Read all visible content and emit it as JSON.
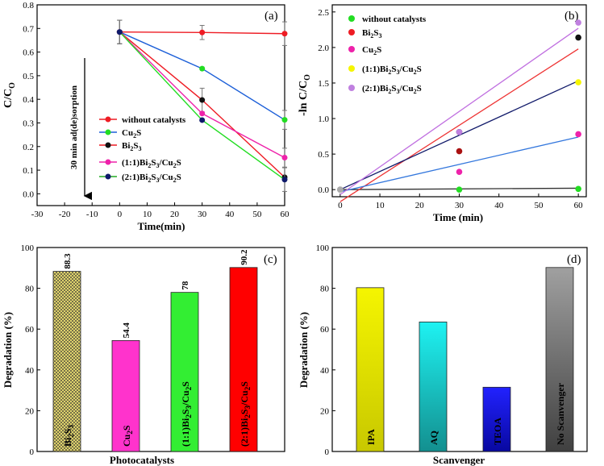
{
  "colors": {
    "red": "#ee1c24",
    "green": "#22dd22",
    "blue": "#1c5fd8",
    "navy": "#0f1a6b",
    "magenta": "#ee22aa",
    "yellow": "#f5f500",
    "purple": "#c080e0",
    "bi2s3_face": "#eee070",
    "cu2s_face": "#ff33cc",
    "c11_face": "#33ee33",
    "c21_face": "#ff0000",
    "ipa": "#f5f500",
    "aq": "#1ef2f2",
    "teoa": "#1010ee",
    "nosc": "#9a9a9a"
  },
  "chart_data": [
    {
      "panel": "(a)",
      "type": "line",
      "xlabel": "Time(min)",
      "ylabel": "C/C",
      "ylabel_sub": "O",
      "xlim": [
        -30,
        60
      ],
      "ylim": [
        -0.05,
        0.8
      ],
      "xticks": [
        -30,
        -20,
        -10,
        0,
        10,
        20,
        30,
        40,
        50,
        60
      ],
      "yticks": [
        0.0,
        0.1,
        0.2,
        0.3,
        0.4,
        0.5,
        0.6,
        0.7,
        0.8
      ],
      "annotation": "30 min ad(de)sorption",
      "series": [
        {
          "name": "without catalysts",
          "legend_main": "without catalysts",
          "legend_sub": "",
          "legend_tail": "",
          "color": "red",
          "x": [
            0,
            30,
            60
          ],
          "y": [
            0.685,
            0.683,
            0.678
          ],
          "err": [
            0.05,
            0.03,
            0.05
          ]
        },
        {
          "name": "Cu2S",
          "legend_main": "Cu",
          "legend_sub": "2",
          "legend_tail": "S",
          "color": "green",
          "x": [
            0,
            30,
            60
          ],
          "y": [
            0.685,
            0.53,
            0.313
          ],
          "err": [
            0.05,
            0.0,
            0.04
          ]
        },
        {
          "name": "Bi2S3",
          "legend_main": "Bi",
          "legend_sub": "2",
          "legend_tail": "S",
          "legend_sub2": "3",
          "color": "navy",
          "x": [
            0,
            30,
            60
          ],
          "y": [
            0.685,
            0.397,
            0.07
          ],
          "err": [
            0.05,
            0.05,
            0.0
          ]
        },
        {
          "name": "(1:1)Bi2S3/Cu2S",
          "legend_main": "(1:1)Bi",
          "color": "magenta",
          "x": [
            0,
            30,
            60
          ],
          "y": [
            0.685,
            0.34,
            0.153
          ],
          "err": [
            0.05,
            0.0,
            0.04
          ]
        },
        {
          "name": "(2:1)Bi2S3/Cu2S",
          "legend_main": "(2:1)Bi",
          "color": "navy",
          "marker_color": "blue",
          "line_color": "green",
          "x": [
            0,
            30,
            60
          ],
          "y": [
            0.685,
            0.312,
            0.06
          ],
          "err": [
            0.05,
            0.0,
            0.05
          ]
        }
      ]
    },
    {
      "panel": "(b)",
      "type": "scatter",
      "xlabel": "Time (min)",
      "ylabel": "-ln C/C",
      "ylabel_sub": "O",
      "xlim": [
        -2,
        62
      ],
      "ylim": [
        -0.1,
        2.6
      ],
      "xticks": [
        0,
        10,
        20,
        30,
        40,
        50,
        60
      ],
      "yticks": [
        0.0,
        0.5,
        1.0,
        1.5,
        2.0,
        2.5
      ],
      "series": [
        {
          "name": "without catalysts",
          "color": "green",
          "x": [
            0,
            30,
            60
          ],
          "y": [
            0.0,
            0.0,
            0.01
          ],
          "fit": [
            [
              0,
              0.0
            ],
            [
              60,
              0.02
            ]
          ]
        },
        {
          "name": "Bi2S3",
          "color": "red",
          "x": [
            0,
            30,
            60
          ],
          "y": [
            0.0,
            0.54,
            2.14
          ],
          "fit": [
            [
              0,
              -0.17
            ],
            [
              60,
              1.98
            ]
          ]
        },
        {
          "name": "Cu2S",
          "color": "magenta",
          "x": [
            0,
            30,
            60
          ],
          "y": [
            0.0,
            0.25,
            0.78
          ],
          "fit": [
            [
              0,
              -0.03
            ],
            [
              60,
              0.74
            ]
          ]
        },
        {
          "name": "(1:1)Bi2S3/Cu2S",
          "color": "yellow",
          "x": [
            0,
            30,
            60
          ],
          "y": [
            0.0,
            0.81,
            1.51
          ],
          "fit": [
            [
              0,
              0.0
            ],
            [
              60,
              1.53
            ]
          ]
        },
        {
          "name": "(2:1)Bi2S3/Cu2S",
          "color": "purple",
          "x": [
            0,
            30,
            60
          ],
          "y": [
            0.0,
            0.81,
            2.35
          ],
          "fit": [
            [
              0,
              -0.07
            ],
            [
              60,
              2.27
            ]
          ]
        }
      ]
    },
    {
      "panel": "(c)",
      "type": "bar",
      "xlabel": "Photocatalysts",
      "ylabel": "Degradation (%)",
      "ylim": [
        0,
        100
      ],
      "yticks": [
        0,
        20,
        40,
        60,
        80,
        100
      ],
      "categories": [
        "Bi2S3",
        "Cu2S",
        "(1:1)Bi2S3/Cu2S",
        "(2:1)Bi2S3/Cu2S"
      ],
      "values": [
        88.3,
        54.4,
        78,
        90.2
      ],
      "value_labels": [
        "88.3",
        "54.4",
        "78",
        "90.2"
      ]
    },
    {
      "panel": "(d)",
      "type": "bar",
      "xlabel": "Scanvenger",
      "ylabel": "Degradation (%)",
      "ylim": [
        0,
        100
      ],
      "yticks": [
        0,
        20,
        40,
        60,
        80,
        100
      ],
      "categories": [
        "IPA",
        "AQ",
        "TEOA",
        "No Scanvenger"
      ],
      "values": [
        80.3,
        63.5,
        31.5,
        90.2
      ]
    }
  ],
  "labels": {
    "a": {
      "panel": "(a)",
      "xlabel": "Time(min)",
      "yl_main": "C/C",
      "yl_sub": "O",
      "annotation": "30 min ad(de)sorption",
      "ticks_x": [
        "-30",
        "-20",
        "-10",
        "0",
        "10",
        "20",
        "30",
        "40",
        "50",
        "60"
      ],
      "ticks_y": [
        "0.0",
        "0.1",
        "0.2",
        "0.3",
        "0.4",
        "0.5",
        "0.6",
        "0.7",
        "0.8"
      ],
      "legend": {
        "l1": "without catalysts",
        "cu": "Cu",
        "s": "S",
        "bi": "Bi",
        "two": "2",
        "three": "3",
        "l4a": "(1:1)Bi",
        "l5a": "(2:1)Bi",
        "slash": "S",
        "cu2": "/Cu",
        "end": "S"
      }
    },
    "b": {
      "panel": "(b)",
      "xlabel": "Time (min)",
      "yl_main": "-ln C/C",
      "yl_sub": "O",
      "ticks_x": [
        "0",
        "10",
        "20",
        "30",
        "40",
        "50",
        "60"
      ],
      "ticks_y": [
        "0.0",
        "0.5",
        "1.0",
        "1.5",
        "2.0",
        "2.5"
      ],
      "legend": {
        "l1": "without catalysts",
        "bi": "Bi",
        "cu": "Cu",
        "s": "S",
        "two": "2",
        "three": "3",
        "l4a": "(1:1)Bi",
        "l5a": "(2:1)Bi",
        "cu2": "/Cu"
      }
    },
    "c": {
      "panel": "(c)",
      "xlabel": "Photocatalysts",
      "ylabel": "Degradation (%)",
      "ticks_y": [
        "0",
        "20",
        "40",
        "60",
        "80",
        "100"
      ],
      "bars": [
        {
          "a": "Bi",
          "b": "2",
          "c": "S",
          "d": "3",
          "e": "",
          "f": "",
          "g": ""
        },
        {
          "a": "Cu",
          "b": "2",
          "c": "S"
        },
        {
          "a": "(1:1)Bi",
          "b": "2",
          "c": "S",
          "d": "3",
          "e": "/Cu",
          "f": "2",
          "g": "S"
        },
        {
          "a": "(2:1)Bi",
          "b": "2",
          "c": "S",
          "d": "3",
          "e": "/Cu",
          "f": "2",
          "g": "S"
        }
      ]
    },
    "d": {
      "panel": "(d)",
      "xlabel": "Scanvenger",
      "ylabel": "Degradation (%)",
      "ticks_y": [
        "0",
        "20",
        "40",
        "60",
        "80",
        "100"
      ],
      "bars": [
        "IPA",
        "AQ",
        "TEOA",
        "No Scanvenger"
      ]
    }
  }
}
